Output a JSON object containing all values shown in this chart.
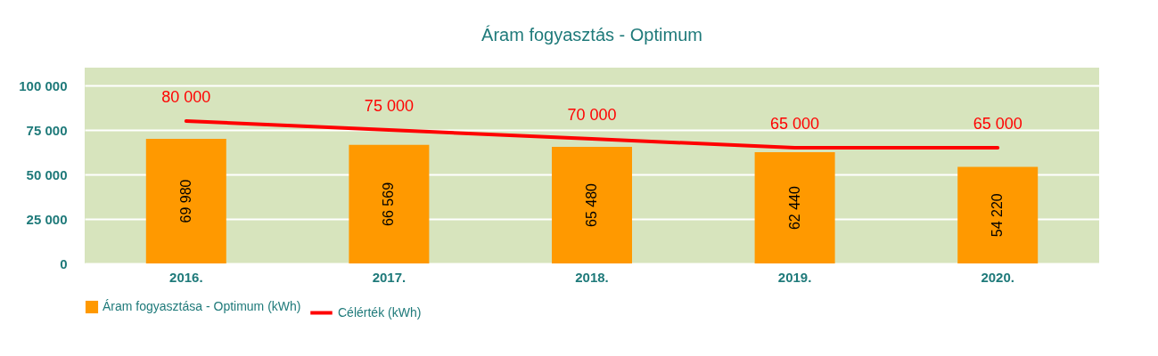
{
  "chart_data": {
    "type": "bar",
    "title": "Áram fogyasztás - Optimum",
    "categories": [
      "2016.",
      "2017.",
      "2018.",
      "2019.",
      "2020."
    ],
    "series": [
      {
        "name": "Áram fogyasztása - Optimum (kWh)",
        "color": "#ff9900",
        "values": [
          69980,
          66569,
          65480,
          62440,
          54220
        ]
      },
      {
        "name": "Célérték (kWh)",
        "type": "line",
        "color": "#ff0000",
        "values": [
          80000,
          75000,
          70000,
          65000,
          65000
        ]
      }
    ],
    "ylim": [
      0,
      110000
    ],
    "yticks": [
      0,
      25000,
      50000,
      75000,
      100000
    ],
    "grid": "y",
    "legend": "bottom",
    "data_labels": true
  }
}
